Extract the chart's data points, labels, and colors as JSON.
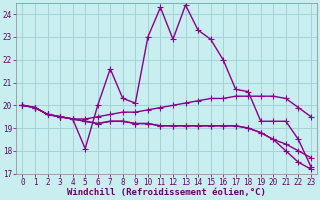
{
  "background_color": "#c8eef0",
  "grid_color": "#9fd0d4",
  "line_color": "#8b008b",
  "marker": "+",
  "markersize": 4,
  "linewidth": 1.0,
  "xlim": [
    -0.5,
    23.5
  ],
  "ylim": [
    17,
    24.5
  ],
  "yticks": [
    17,
    18,
    19,
    20,
    21,
    22,
    23,
    24
  ],
  "xtick_labels": [
    "0",
    "1",
    "2",
    "3",
    "4",
    "5",
    "6",
    "7",
    "8",
    "9",
    "10",
    "11",
    "12",
    "13",
    "14",
    "15",
    "16",
    "17",
    "18",
    "19",
    "20",
    "21",
    "22",
    "23"
  ],
  "xticks": [
    0,
    1,
    2,
    3,
    4,
    5,
    6,
    7,
    8,
    9,
    10,
    11,
    12,
    13,
    14,
    15,
    16,
    17,
    18,
    19,
    20,
    21,
    22,
    23
  ],
  "xlabel": "Windchill (Refroidissement éolien,°C)",
  "xlabel_fontsize": 6.5,
  "tick_fontsize": 5.5,
  "series": [
    {
      "x": [
        0,
        1,
        2,
        3,
        4,
        5,
        6,
        7,
        8,
        9,
        10,
        11,
        12,
        13,
        14,
        15,
        16,
        17,
        18,
        19,
        20,
        21,
        22,
        23
      ],
      "y": [
        20.0,
        19.9,
        19.6,
        19.5,
        19.4,
        18.1,
        20.0,
        21.6,
        20.3,
        20.1,
        23.0,
        24.3,
        22.9,
        24.4,
        23.3,
        22.9,
        22.0,
        20.7,
        20.6,
        19.3,
        19.3,
        19.3,
        18.5,
        17.3
      ]
    },
    {
      "x": [
        0,
        1,
        2,
        3,
        4,
        5,
        6,
        7,
        8,
        9,
        10,
        11,
        12,
        13,
        14,
        15,
        16,
        17,
        18,
        19,
        20,
        21,
        22,
        23
      ],
      "y": [
        20.0,
        19.9,
        19.6,
        19.5,
        19.4,
        19.4,
        19.5,
        19.6,
        19.7,
        19.7,
        19.8,
        19.9,
        20.0,
        20.1,
        20.2,
        20.3,
        20.3,
        20.4,
        20.4,
        20.4,
        20.4,
        20.3,
        19.9,
        19.5
      ]
    },
    {
      "x": [
        0,
        1,
        2,
        3,
        4,
        5,
        6,
        7,
        8,
        9,
        10,
        11,
        12,
        13,
        14,
        15,
        16,
        17,
        18,
        19,
        20,
        21,
        22,
        23
      ],
      "y": [
        20.0,
        19.9,
        19.6,
        19.5,
        19.4,
        19.3,
        19.2,
        19.3,
        19.3,
        19.2,
        19.2,
        19.1,
        19.1,
        19.1,
        19.1,
        19.1,
        19.1,
        19.1,
        19.0,
        18.8,
        18.5,
        18.3,
        18.0,
        17.7
      ]
    },
    {
      "x": [
        0,
        1,
        2,
        3,
        4,
        5,
        6,
        7,
        8,
        9,
        10,
        11,
        12,
        13,
        14,
        15,
        16,
        17,
        18,
        19,
        20,
        21,
        22,
        23
      ],
      "y": [
        20.0,
        19.9,
        19.6,
        19.5,
        19.4,
        19.3,
        19.2,
        19.3,
        19.3,
        19.2,
        19.2,
        19.1,
        19.1,
        19.1,
        19.1,
        19.1,
        19.1,
        19.1,
        19.0,
        18.8,
        18.5,
        18.0,
        17.5,
        17.2
      ]
    }
  ]
}
